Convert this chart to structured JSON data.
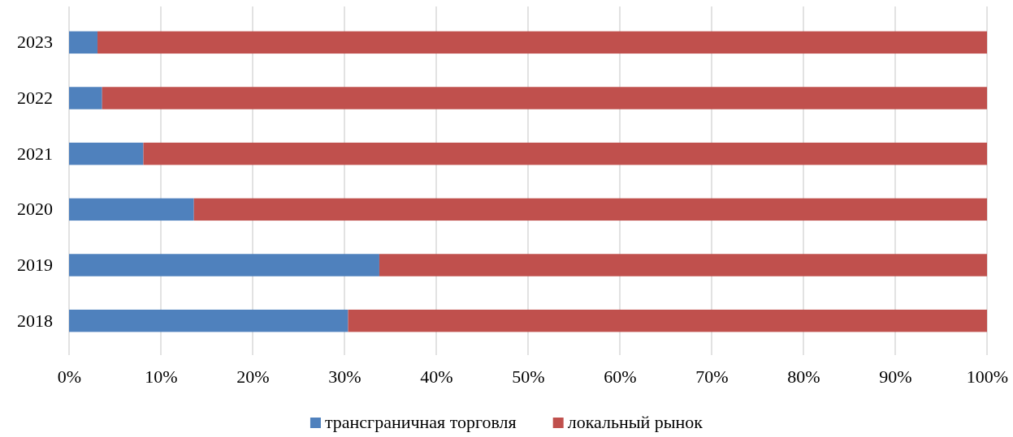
{
  "chart_data": {
    "type": "bar",
    "orientation": "horizontal",
    "stacked": true,
    "categories": [
      "2023",
      "2022",
      "2021",
      "2020",
      "2019",
      "2018"
    ],
    "series": [
      {
        "name": "трансграничная торговля",
        "color": "#4f81bd",
        "values": [
          3.1,
          3.6,
          8.1,
          13.6,
          33.8,
          30.4
        ]
      },
      {
        "name": "локальный рынок",
        "color": "#c0504d",
        "values": [
          96.9,
          96.4,
          91.9,
          86.4,
          66.2,
          69.6
        ]
      }
    ],
    "xlim": [
      0,
      100
    ],
    "xticks": [
      {
        "value": 0,
        "label": "0%"
      },
      {
        "value": 10,
        "label": "10%"
      },
      {
        "value": 20,
        "label": "20%"
      },
      {
        "value": 30,
        "label": "30%"
      },
      {
        "value": 40,
        "label": "40%"
      },
      {
        "value": 50,
        "label": "50%"
      },
      {
        "value": 60,
        "label": "60%"
      },
      {
        "value": 70,
        "label": "70%"
      },
      {
        "value": 80,
        "label": "80%"
      },
      {
        "value": 90,
        "label": "90%"
      },
      {
        "value": 100,
        "label": "100%"
      }
    ],
    "grid": "x",
    "legend": "bottom"
  }
}
